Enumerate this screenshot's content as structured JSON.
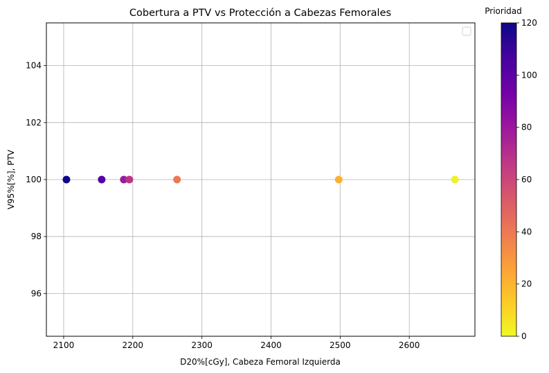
{
  "chart_data": {
    "type": "scatter",
    "title": "Cobertura a PTV vs Protección a Cabezas Femorales",
    "xlabel": "D20%[cGy], Cabeza Femoral Izquierda",
    "ylabel": "V95%[%], PTV",
    "xlim": [
      2075,
      2695
    ],
    "ylim": [
      94.5,
      105.5
    ],
    "x_ticks": [
      2100,
      2200,
      2300,
      2400,
      2500,
      2600
    ],
    "y_ticks": [
      96,
      98,
      100,
      102,
      104
    ],
    "grid": true,
    "legend": "top-right (empty)",
    "colormap": "plasma",
    "colorbar": {
      "label": "Prioridad",
      "range": [
        0,
        120
      ],
      "ticks": [
        0,
        20,
        40,
        60,
        80,
        100,
        120
      ],
      "stops": [
        "#f0f921",
        "#fdca26",
        "#fb9f3a",
        "#ed7953",
        "#d8576b",
        "#bd3786",
        "#9c179e",
        "#7201a8",
        "#46039f",
        "#0d0887"
      ]
    },
    "points": [
      {
        "x": 2104,
        "y": 100,
        "priority": 120,
        "color": "#0d0887"
      },
      {
        "x": 2155,
        "y": 100,
        "priority": 105,
        "color": "#5402a3"
      },
      {
        "x": 2187,
        "y": 100,
        "priority": 85,
        "color": "#9a1a9f"
      },
      {
        "x": 2195,
        "y": 100,
        "priority": 72,
        "color": "#bb3488"
      },
      {
        "x": 2264,
        "y": 100,
        "priority": 45,
        "color": "#ec7853"
      },
      {
        "x": 2498,
        "y": 100,
        "priority": 20,
        "color": "#fbb130"
      },
      {
        "x": 2666,
        "y": 100,
        "priority": 3,
        "color": "#eff027"
      }
    ]
  }
}
